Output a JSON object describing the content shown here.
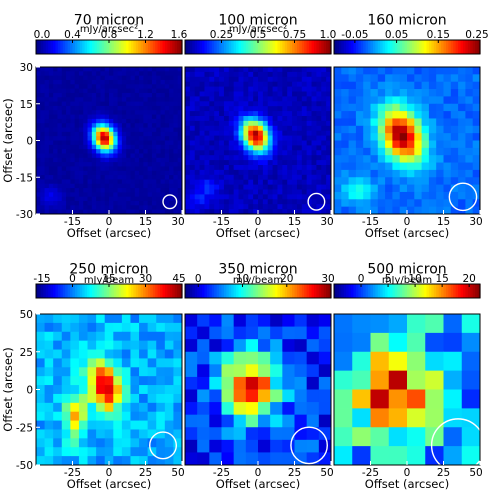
{
  "chart_data": [
    {
      "type": "heatmap",
      "title": "70 micron",
      "colorbar_label": "mJy/arcsec²",
      "colorbar_ticks": [
        "0.0",
        "0.4",
        "0.8",
        "1.2",
        "1.6"
      ],
      "colorbar_range": [
        0.0,
        1.6
      ],
      "xlabel": "Offset (arcsec)",
      "ylabel": "Offset (arcsec)",
      "xlim": [
        -30,
        30
      ],
      "ylim": [
        -30,
        30
      ],
      "xticks": [
        "-15",
        "0",
        "15",
        "30"
      ],
      "yticks": [
        "30",
        "15",
        "0",
        "-15",
        "-30"
      ],
      "grid_size": 34,
      "background": 0.05,
      "sources": [
        {
          "x": -2,
          "y": 1,
          "sx": 3.0,
          "sy": 3.8,
          "theta": 25,
          "peak": 1.5
        },
        {
          "x": -24,
          "y": -23,
          "sx": 3,
          "sy": 3,
          "theta": 0,
          "peak": 0.12
        }
      ],
      "noise": 0.02,
      "beam": {
        "x": 25,
        "y": -25,
        "diameter": 5.6
      }
    },
    {
      "type": "heatmap",
      "title": "100 micron",
      "colorbar_label": "mJy/arcsec²",
      "colorbar_ticks": [
        "0.25",
        "0.5",
        "0.75",
        "1.0"
      ],
      "colorbar_range": [
        0.0,
        1.0
      ],
      "xlabel": "Offset (arcsec)",
      "ylabel": "",
      "xlim": [
        -30,
        30
      ],
      "ylim": [
        -30,
        30
      ],
      "xticks": [
        "-15",
        "0",
        "15",
        "30"
      ],
      "yticks": [],
      "grid_size": 30,
      "background": 0.06,
      "sources": [
        {
          "x": -1,
          "y": 2,
          "sx": 3.6,
          "sy": 4.8,
          "theta": 30,
          "peak": 0.9
        },
        {
          "x": -20,
          "y": -19,
          "sx": 2.5,
          "sy": 2.5,
          "theta": 0,
          "peak": 0.12
        },
        {
          "x": -24,
          "y": -24,
          "sx": 2.5,
          "sy": 2.5,
          "theta": 0,
          "peak": 0.1
        }
      ],
      "noise": 0.03,
      "beam": {
        "x": 24,
        "y": -25,
        "diameter": 6.8
      }
    },
    {
      "type": "heatmap",
      "title": "160 micron",
      "colorbar_label": "",
      "colorbar_ticks": [
        "-0.05",
        "0.05",
        "0.15",
        "0.25"
      ],
      "colorbar_range": [
        -0.1,
        0.25
      ],
      "xlabel": "Offset (arcsec)",
      "ylabel": "",
      "xlim": [
        -30,
        30
      ],
      "ylim": [
        -30,
        30
      ],
      "xticks": [
        "-15",
        "0",
        "15",
        "30"
      ],
      "yticks": [],
      "grid_size": 20,
      "background": -0.02,
      "sources": [
        {
          "x": -2,
          "y": 2,
          "sx": 5.5,
          "sy": 8.0,
          "theta": 25,
          "peak": 0.27
        },
        {
          "x": -20,
          "y": -20,
          "sx": 4,
          "sy": 4,
          "theta": 0,
          "peak": 0.07
        }
      ],
      "noise": 0.012,
      "beam": {
        "x": 23,
        "y": -23,
        "diameter": 11.2
      }
    },
    {
      "type": "heatmap",
      "title": "250 micron",
      "colorbar_label": "mJy/beam",
      "colorbar_ticks": [
        "-15",
        "0",
        "15",
        "30",
        "45"
      ],
      "colorbar_range": [
        -15,
        45
      ],
      "xlabel": "Offset (arcsec)",
      "ylabel": "Offset (arcsec)",
      "xlim": [
        -50,
        50
      ],
      "ylim": [
        -50,
        50
      ],
      "xticks": [
        "-25",
        "0",
        "25",
        "50"
      ],
      "yticks": [
        "50",
        "25",
        "0",
        "-25",
        "-50"
      ],
      "grid_size": 17,
      "background": 3,
      "sources": [
        {
          "x": -3,
          "y": 2,
          "sx": 7,
          "sy": 11,
          "theta": 15,
          "peak": 42
        },
        {
          "x": -23,
          "y": -18,
          "sx": 5,
          "sy": 10,
          "theta": 0,
          "peak": 24
        }
      ],
      "noise": 4,
      "beam": {
        "x": 37,
        "y": -37,
        "diameter": 18.2
      }
    },
    {
      "type": "heatmap",
      "title": "350 micron",
      "colorbar_label": "mJy/beam",
      "colorbar_ticks": [
        "0",
        "10",
        "20",
        "30"
      ],
      "colorbar_range": [
        -3,
        30
      ],
      "xlabel": "Offset (arcsec)",
      "ylabel": "",
      "xlim": [
        -50,
        50
      ],
      "ylim": [
        -50,
        50
      ],
      "xticks": [
        "-25",
        "0",
        "25",
        "50"
      ],
      "yticks": [],
      "grid_size": 12,
      "background": 2,
      "sources": [
        {
          "x": -5,
          "y": 2,
          "sx": 13,
          "sy": 15,
          "theta": 10,
          "peak": 24
        }
      ],
      "noise": 3.5,
      "beam": {
        "x": 35,
        "y": -37,
        "diameter": 24.9
      }
    },
    {
      "type": "heatmap",
      "title": "500 micron",
      "colorbar_label": "mJy/beam",
      "colorbar_ticks": [
        "0",
        "5",
        "10",
        "15",
        "20"
      ],
      "colorbar_range": [
        -5,
        22
      ],
      "xlabel": "Offset (arcsec)",
      "ylabel": "",
      "xlim": [
        -50,
        50
      ],
      "ylim": [
        -50,
        50
      ],
      "xticks": [
        "-25",
        "0",
        "25",
        "50"
      ],
      "yticks": [],
      "grid_size": 8,
      "background": 3,
      "sources": [
        {
          "x": -10,
          "y": 0,
          "sx": 18,
          "sy": 20,
          "theta": 0,
          "peak": 16
        }
      ],
      "noise": 4,
      "beam": {
        "x": 35,
        "y": -37,
        "diameter": 36.3
      }
    }
  ]
}
